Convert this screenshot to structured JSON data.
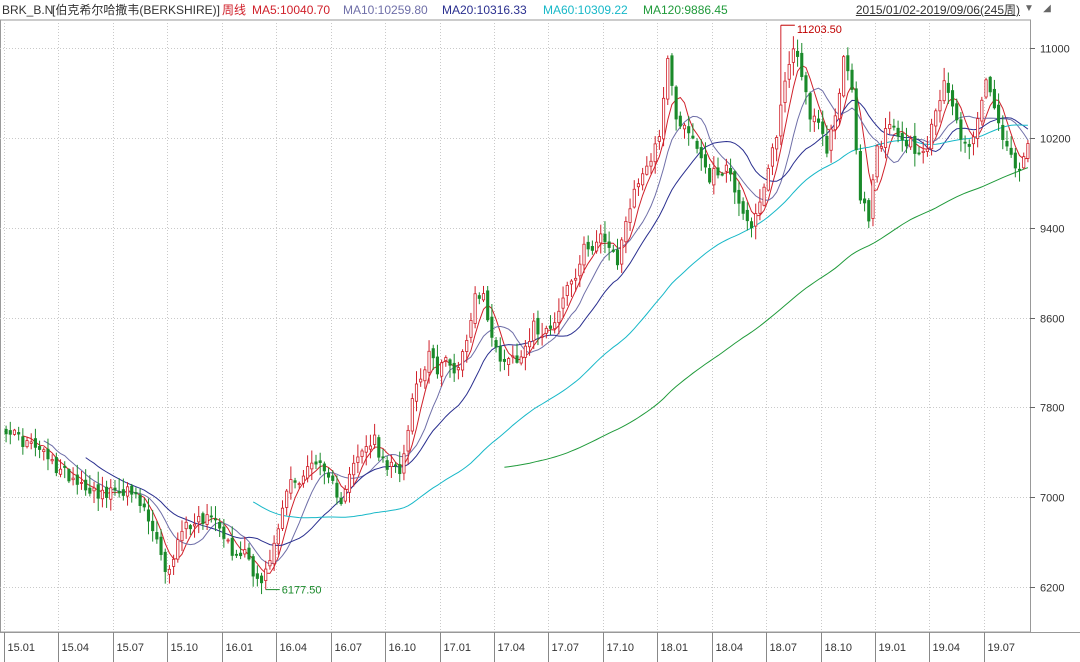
{
  "header": {
    "symbol": "BRK_B.N",
    "name": "[伯克希尔哈撒韦(BERKSHIRE)]",
    "period": "周线",
    "ma": [
      {
        "label": "MA5:10040.70",
        "color": "#d0202a"
      },
      {
        "label": "MA10:10259.80",
        "color": "#6f6fa8"
      },
      {
        "label": "MA20:10316.33",
        "color": "#2a2f8f"
      },
      {
        "label": "MA60:10309.22",
        "color": "#17b8c8"
      },
      {
        "label": "MA120:9886.45",
        "color": "#1f9a3a"
      }
    ],
    "date_range": "2015/01/02-2019/09/06(245周)"
  },
  "colors": {
    "up": "#d0202a",
    "down": "#1a8a2a",
    "grid": "#c9c9c9",
    "axis_text": "#333333",
    "peak_label": "#c00000",
    "trough_label": "#1a8a2a"
  },
  "chart_data": {
    "type": "candlestick",
    "y_ticks": [
      6200,
      7000,
      7800,
      8600,
      9400,
      10200,
      11000
    ],
    "ylim": [
      5800,
      11250
    ],
    "x_ticks": [
      "15.01",
      "15.04",
      "15.07",
      "15.10",
      "16.01",
      "16.04",
      "16.07",
      "16.10",
      "17.01",
      "17.04",
      "17.07",
      "17.10",
      "18.01",
      "18.04",
      "18.07",
      "18.10",
      "19.01",
      "19.04",
      "19.07"
    ],
    "bars_per_tick": 13,
    "total_bars": 245,
    "annotations": [
      {
        "text": "11203.50",
        "bar": 185,
        "value": 11203.5,
        "kind": "high"
      },
      {
        "text": "6177.50",
        "bar": 62,
        "value": 6177.5,
        "kind": "low"
      }
    ],
    "close_anchors": [
      [
        0,
        7620
      ],
      [
        4,
        7500
      ],
      [
        8,
        7420
      ],
      [
        12,
        7260
      ],
      [
        16,
        7180
      ],
      [
        20,
        7080
      ],
      [
        24,
        7010
      ],
      [
        27,
        7080
      ],
      [
        30,
        7030
      ],
      [
        33,
        6880
      ],
      [
        36,
        6600
      ],
      [
        38,
        6300
      ],
      [
        40,
        6480
      ],
      [
        42,
        6720
      ],
      [
        45,
        6790
      ],
      [
        48,
        6830
      ],
      [
        50,
        6850
      ],
      [
        53,
        6600
      ],
      [
        55,
        6450
      ],
      [
        57,
        6560
      ],
      [
        59,
        6350
      ],
      [
        61,
        6230
      ],
      [
        62,
        6330
      ],
      [
        64,
        6560
      ],
      [
        66,
        6900
      ],
      [
        68,
        7200
      ],
      [
        70,
        7120
      ],
      [
        72,
        7250
      ],
      [
        74,
        7350
      ],
      [
        76,
        7180
      ],
      [
        78,
        7100
      ],
      [
        80,
        6990
      ],
      [
        82,
        7230
      ],
      [
        84,
        7330
      ],
      [
        86,
        7450
      ],
      [
        88,
        7500
      ],
      [
        90,
        7300
      ],
      [
        92,
        7260
      ],
      [
        94,
        7260
      ],
      [
        95,
        7400
      ],
      [
        97,
        7900
      ],
      [
        99,
        8100
      ],
      [
        101,
        8250
      ],
      [
        103,
        8150
      ],
      [
        105,
        8220
      ],
      [
        107,
        8100
      ],
      [
        109,
        8300
      ],
      [
        111,
        8550
      ],
      [
        112,
        8820
      ],
      [
        114,
        8800
      ],
      [
        116,
        8400
      ],
      [
        118,
        8250
      ],
      [
        120,
        8230
      ],
      [
        122,
        8250
      ],
      [
        124,
        8350
      ],
      [
        126,
        8520
      ],
      [
        128,
        8480
      ],
      [
        130,
        8550
      ],
      [
        132,
        8650
      ],
      [
        134,
        8880
      ],
      [
        136,
        8950
      ],
      [
        138,
        9200
      ],
      [
        140,
        9250
      ],
      [
        142,
        9350
      ],
      [
        144,
        9200
      ],
      [
        146,
        9080
      ],
      [
        148,
        9480
      ],
      [
        150,
        9700
      ],
      [
        152,
        9920
      ],
      [
        154,
        10000
      ],
      [
        156,
        10250
      ],
      [
        157,
        10600
      ],
      [
        158,
        10900
      ],
      [
        160,
        10400
      ],
      [
        162,
        10300
      ],
      [
        164,
        10200
      ],
      [
        166,
        10050
      ],
      [
        168,
        9850
      ],
      [
        170,
        9900
      ],
      [
        172,
        9950
      ],
      [
        174,
        9750
      ],
      [
        176,
        9550
      ],
      [
        178,
        9420
      ],
      [
        180,
        9580
      ],
      [
        182,
        9900
      ],
      [
        184,
        10250
      ],
      [
        186,
        10700
      ],
      [
        188,
        11020
      ],
      [
        190,
        10800
      ],
      [
        192,
        10400
      ],
      [
        194,
        10300
      ],
      [
        196,
        10100
      ],
      [
        198,
        10400
      ],
      [
        200,
        10900
      ],
      [
        202,
        10600
      ],
      [
        204,
        9650
      ],
      [
        206,
        9500
      ],
      [
        208,
        10100
      ],
      [
        210,
        10250
      ],
      [
        212,
        10300
      ],
      [
        214,
        10150
      ],
      [
        216,
        10180
      ],
      [
        218,
        10050
      ],
      [
        220,
        10150
      ],
      [
        222,
        10400
      ],
      [
        224,
        10750
      ],
      [
        226,
        10500
      ],
      [
        228,
        10200
      ],
      [
        230,
        10100
      ],
      [
        232,
        10400
      ],
      [
        234,
        10700
      ],
      [
        236,
        10450
      ],
      [
        238,
        10200
      ],
      [
        240,
        10000
      ],
      [
        242,
        9870
      ],
      [
        244,
        10150
      ]
    ],
    "ma_series": [
      {
        "name": "MA5",
        "color": "#d0202a",
        "window": 5
      },
      {
        "name": "MA10",
        "color": "#6f6fa8",
        "window": 10
      },
      {
        "name": "MA20",
        "color": "#2a2f8f",
        "window": 20
      },
      {
        "name": "MA60",
        "color": "#17b8c8",
        "window": 60
      },
      {
        "name": "MA120",
        "color": "#1f9a3a",
        "window": 120
      }
    ]
  }
}
